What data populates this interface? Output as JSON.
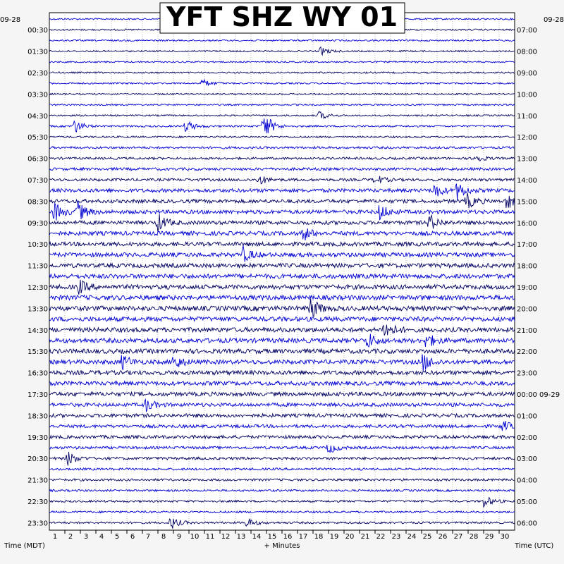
{
  "chart_data": {
    "type": "line",
    "title": "YFT SHZ WY 01",
    "station": "YFT",
    "channel": "SHZ",
    "network": "WY",
    "location": "01",
    "xlabel": "+ Minutes",
    "left_axis_label": "Time (MDT)",
    "right_axis_label": "Time (UTC)",
    "start_date_label": "09-28",
    "next_date_label": "09-29",
    "x_ticks": [
      "1",
      "2",
      "3",
      "4",
      "5",
      "6",
      "7",
      "8",
      "9",
      "10",
      "11",
      "12",
      "13",
      "14",
      "15",
      "16",
      "17",
      "18",
      "19",
      "20",
      "21",
      "22",
      "23",
      "24",
      "25",
      "26",
      "27",
      "28",
      "29",
      "30"
    ],
    "xlim": [
      0,
      30
    ],
    "left_time_labels": [
      "00:30",
      "01:30",
      "02:30",
      "03:30",
      "04:30",
      "05:30",
      "06:30",
      "07:30",
      "08:30",
      "09:30",
      "10:30",
      "11:30",
      "12:30",
      "13:30",
      "14:30",
      "15:30",
      "16:30",
      "17:30",
      "18:30",
      "19:30",
      "20:30",
      "21:30",
      "22:30",
      "23:30"
    ],
    "right_time_labels": [
      "07:00",
      "08:00",
      "09:00",
      "10:00",
      "11:00",
      "12:00",
      "13:00",
      "14:00",
      "15:00",
      "16:00",
      "17:00",
      "18:00",
      "19:00",
      "20:00",
      "21:00",
      "22:00",
      "23:00",
      "00:00",
      "01:00",
      "02:00",
      "03:00",
      "04:00",
      "05:00",
      "06:00"
    ],
    "trace_count": 48,
    "trace_minutes": 30,
    "trace_colors": [
      "#0000d0",
      "#000060"
    ],
    "grid": true,
    "relative_noise_by_hour": [
      0.35,
      0.35,
      0.35,
      0.35,
      0.35,
      0.4,
      0.5,
      0.6,
      0.8,
      0.85,
      0.9,
      0.95,
      1.0,
      1.05,
      1.0,
      1.0,
      0.95,
      0.9,
      0.8,
      0.7,
      0.6,
      0.5,
      0.45,
      0.45
    ],
    "events": [
      {
        "trace": 3,
        "minute": 17.5,
        "amplitude": 0.8
      },
      {
        "trace": 6,
        "minute": 9.8,
        "amplitude": 0.9
      },
      {
        "trace": 9,
        "minute": 17.4,
        "amplitude": 0.9
      },
      {
        "trace": 10,
        "minute": 1.6,
        "amplitude": 1.5
      },
      {
        "trace": 10,
        "minute": 8.8,
        "amplitude": 1.3
      },
      {
        "trace": 10,
        "minute": 13.8,
        "amplitude": 3.2
      },
      {
        "trace": 13,
        "minute": 27.4,
        "amplitude": 1.0
      },
      {
        "trace": 15,
        "minute": 13.5,
        "amplitude": 1.0
      },
      {
        "trace": 15,
        "minute": 21.0,
        "amplitude": 1.0
      },
      {
        "trace": 16,
        "minute": 24.8,
        "amplitude": 1.5
      },
      {
        "trace": 16,
        "minute": 26.3,
        "amplitude": 1.8
      },
      {
        "trace": 17,
        "minute": 26.9,
        "amplitude": 1.6
      },
      {
        "trace": 17,
        "minute": 29.5,
        "amplitude": 1.6
      },
      {
        "trace": 18,
        "minute": 0.3,
        "amplitude": 2.0
      },
      {
        "trace": 18,
        "minute": 1.8,
        "amplitude": 2.2
      },
      {
        "trace": 18,
        "minute": 21.3,
        "amplitude": 1.6
      },
      {
        "trace": 19,
        "minute": 7.0,
        "amplitude": 1.8
      },
      {
        "trace": 19,
        "minute": 24.5,
        "amplitude": 1.7
      },
      {
        "trace": 20,
        "minute": 16.4,
        "amplitude": 1.4
      },
      {
        "trace": 22,
        "minute": 12.5,
        "amplitude": 1.5
      },
      {
        "trace": 25,
        "minute": 1.9,
        "amplitude": 1.4
      },
      {
        "trace": 27,
        "minute": 16.8,
        "amplitude": 2.4
      },
      {
        "trace": 29,
        "minute": 21.6,
        "amplitude": 2.0
      },
      {
        "trace": 30,
        "minute": 20.5,
        "amplitude": 1.6
      },
      {
        "trace": 30,
        "minute": 24.3,
        "amplitude": 1.5
      },
      {
        "trace": 32,
        "minute": 4.7,
        "amplitude": 1.5
      },
      {
        "trace": 32,
        "minute": 8.0,
        "amplitude": 1.6
      },
      {
        "trace": 32,
        "minute": 24.1,
        "amplitude": 1.8
      },
      {
        "trace": 36,
        "minute": 6.2,
        "amplitude": 1.3
      },
      {
        "trace": 38,
        "minute": 29.2,
        "amplitude": 1.2
      },
      {
        "trace": 40,
        "minute": 18.0,
        "amplitude": 1.2
      },
      {
        "trace": 41,
        "minute": 1.2,
        "amplitude": 1.5
      },
      {
        "trace": 45,
        "minute": 28.0,
        "amplitude": 1.3
      },
      {
        "trace": 47,
        "minute": 7.8,
        "amplitude": 1.4
      },
      {
        "trace": 47,
        "minute": 12.7,
        "amplitude": 1.0
      }
    ]
  }
}
